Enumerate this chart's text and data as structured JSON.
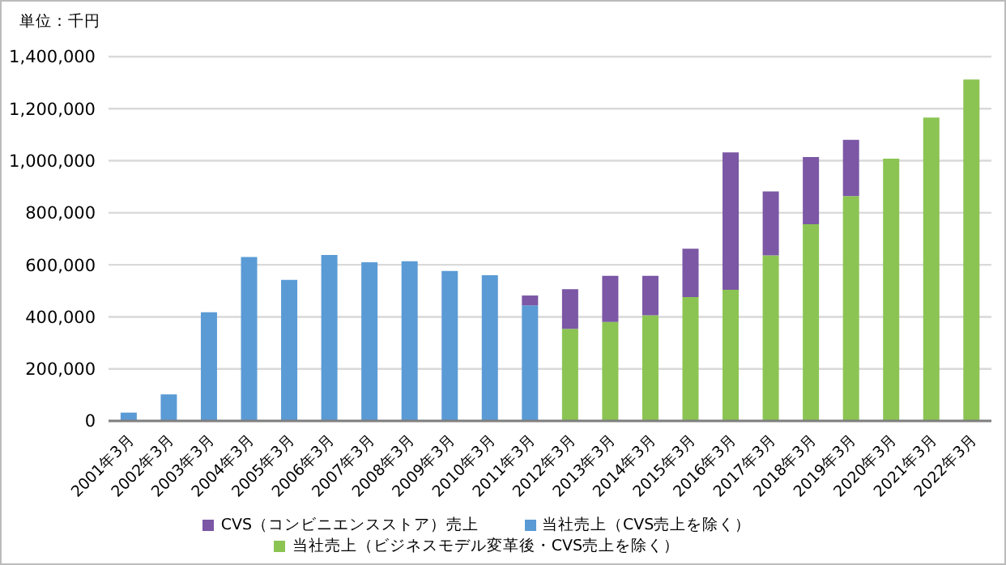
{
  "chart_data": {
    "type": "bar",
    "stacked": true,
    "ylabel": "単位：千円",
    "categories": [
      "2001年3月",
      "2002年3月",
      "2003年3月",
      "2004年3月",
      "2005年3月",
      "2006年3月",
      "2007年3月",
      "2008年3月",
      "2009年3月",
      "2010年3月",
      "2011年3月",
      "2012年3月",
      "2013年3月",
      "2014年3月",
      "2015年3月",
      "2016年3月",
      "2017年3月",
      "2018年3月",
      "2019年3月",
      "2020年3月",
      "2021年3月",
      "2022年3月"
    ],
    "series": [
      {
        "name": "当社売上（CVS売上を除く）",
        "color": "#5b9bd5",
        "values": [
          32000,
          102000,
          418000,
          630000,
          542000,
          638000,
          610000,
          614000,
          576000,
          560000,
          444000,
          null,
          null,
          null,
          null,
          null,
          null,
          null,
          null,
          null,
          null,
          null
        ]
      },
      {
        "name": "当社売上（ビジネスモデル変革後・CVS売上を除く）",
        "color": "#8bc453",
        "values": [
          null,
          null,
          null,
          null,
          null,
          null,
          null,
          null,
          null,
          null,
          null,
          354000,
          380000,
          406000,
          476000,
          504000,
          636000,
          756000,
          864000,
          1008000,
          1166000,
          1312000
        ]
      },
      {
        "name": "CVS（コンビニエンスストア）売上",
        "color": "#7b57a5",
        "values": [
          null,
          null,
          null,
          null,
          null,
          null,
          null,
          null,
          null,
          null,
          38000,
          152000,
          178000,
          152000,
          186000,
          528000,
          246000,
          258000,
          216000,
          null,
          null,
          null
        ]
      }
    ],
    "ylim": [
      0,
      1400000
    ],
    "yticks": [
      0,
      {
        "value": 200000,
        "label": "200,000"
      },
      {
        "value": 400000,
        "label": "400,000"
      },
      {
        "value": 600000,
        "label": "600,000"
      },
      {
        "value": 800000,
        "label": "800,000"
      },
      {
        "value": 1000000,
        "label": "1,000,000"
      },
      {
        "value": 1200000,
        "label": "1,200,000"
      },
      {
        "value": 1400000,
        "label": "1,400,000"
      }
    ],
    "grid": "y",
    "legend": "bottom"
  }
}
